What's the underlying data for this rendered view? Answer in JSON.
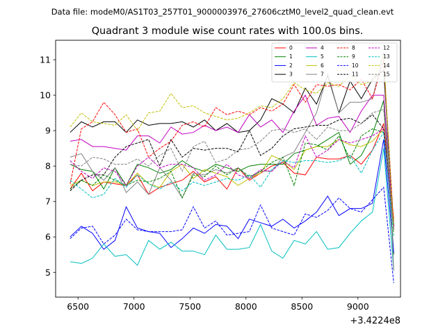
{
  "chart_data": {
    "type": "line",
    "suptitle": "Data file: modeM0/AS1T03_257T01_9000003976_27606cztM0_level2_quad_clean.evt",
    "title": "Quadrant 3 module wise count rates with 100.0s bins.",
    "xlabel": "",
    "ylabel": "",
    "x_offset_label": "+3.4224e8",
    "xlim": [
      6300,
      9380
    ],
    "ylim": [
      4.3,
      11.55
    ],
    "xticks": [
      6500,
      7000,
      7500,
      8000,
      8500,
      9000
    ],
    "yticks": [
      5,
      6,
      7,
      8,
      9,
      10,
      11
    ],
    "x": [
      6430,
      6530,
      6630,
      6730,
      6830,
      6930,
      7030,
      7130,
      7230,
      7330,
      7430,
      7530,
      7630,
      7730,
      7830,
      7930,
      8030,
      8130,
      8230,
      8330,
      8430,
      8530,
      8630,
      8730,
      8830,
      8930,
      9030,
      9130,
      9230,
      9320
    ],
    "legend_position": "top-right",
    "series": [
      {
        "name": "0",
        "color": "#ff0000",
        "dash": "solid",
        "values": [
          7.35,
          7.8,
          7.3,
          7.55,
          7.5,
          7.45,
          7.75,
          7.2,
          7.4,
          7.5,
          7.6,
          7.85,
          7.55,
          7.7,
          7.35,
          7.95,
          7.6,
          7.8,
          8.0,
          8.1,
          7.8,
          7.75,
          8.25,
          8.2,
          8.2,
          8.3,
          8.05,
          8.45,
          9.2,
          6.5
        ]
      },
      {
        "name": "1",
        "color": "#008000",
        "dash": "solid",
        "values": [
          8.05,
          7.9,
          7.85,
          7.35,
          7.95,
          7.45,
          8.05,
          7.95,
          7.8,
          7.9,
          8.15,
          7.95,
          7.85,
          8.05,
          7.95,
          7.85,
          8.0,
          8.05,
          8.05,
          8.05,
          8.35,
          8.45,
          8.55,
          8.75,
          8.95,
          8.05,
          8.3,
          8.9,
          9.85,
          5.5
        ]
      },
      {
        "name": "2",
        "color": "#0000ff",
        "dash": "solid",
        "values": [
          6.0,
          6.3,
          6.1,
          5.65,
          5.9,
          6.85,
          6.25,
          6.15,
          6.1,
          5.7,
          5.95,
          6.25,
          6.1,
          6.35,
          6.3,
          5.95,
          6.5,
          6.4,
          6.3,
          6.5,
          6.25,
          6.45,
          6.7,
          7.15,
          6.6,
          6.8,
          6.8,
          6.95,
          8.75,
          5.55
        ]
      },
      {
        "name": "3",
        "color": "#000000",
        "dash": "solid",
        "values": [
          8.95,
          9.25,
          9.1,
          9.25,
          9.25,
          8.95,
          9.3,
          9.15,
          9.2,
          9.2,
          9.25,
          9.1,
          9.3,
          9.0,
          9.2,
          8.95,
          9.0,
          9.3,
          9.9,
          9.75,
          9.5,
          10.2,
          9.75,
          10.55,
          9.5,
          10.4,
          9.9,
          10.45,
          10.7,
          6.3
        ]
      },
      {
        "name": "4",
        "color": "#c000c0",
        "dash": "solid",
        "values": [
          8.7,
          8.75,
          8.55,
          8.55,
          8.5,
          8.45,
          8.85,
          8.85,
          8.65,
          9.1,
          8.9,
          8.95,
          9.15,
          9.0,
          9.1,
          8.95,
          9.45,
          9.1,
          9.3,
          8.95,
          9.55,
          10.0,
          9.15,
          9.35,
          9.4,
          8.95,
          9.55,
          10.0,
          10.0,
          6.25
        ]
      },
      {
        "name": "5",
        "color": "#00bfbf",
        "dash": "solid",
        "values": [
          5.3,
          5.25,
          5.4,
          5.8,
          5.45,
          5.5,
          5.2,
          5.9,
          5.65,
          5.85,
          5.6,
          5.6,
          5.5,
          6.05,
          5.65,
          5.65,
          5.7,
          6.35,
          5.6,
          5.4,
          5.9,
          5.8,
          6.15,
          5.65,
          5.7,
          6.1,
          6.45,
          6.7,
          8.5,
          5.05
        ]
      },
      {
        "name": "6",
        "color": "#bfbf00",
        "dash": "solid",
        "values": [
          7.45,
          7.6,
          7.45,
          7.55,
          7.55,
          7.45,
          7.8,
          7.5,
          7.4,
          7.85,
          8.05,
          7.65,
          7.9,
          7.8,
          7.7,
          7.45,
          7.65,
          7.8,
          8.3,
          8.15,
          7.9,
          8.45,
          8.55,
          8.55,
          8.75,
          8.6,
          8.55,
          8.7,
          9.05,
          6.45
        ]
      },
      {
        "name": "7",
        "color": "#808080",
        "dash": "solid",
        "values": [
          8.25,
          8.35,
          7.85,
          7.6,
          7.95,
          7.25,
          7.55,
          7.2,
          7.95,
          7.6,
          7.1,
          7.8,
          7.75,
          7.9,
          7.8,
          7.95,
          7.65,
          7.85,
          7.85,
          8.25,
          8.4,
          8.95,
          9.5,
          10.6,
          9.5,
          9.8,
          9.8,
          9.9,
          11.2,
          5.05
        ]
      },
      {
        "name": "8",
        "color": "#ff0000",
        "dash": "dashed",
        "values": [
          7.5,
          9.05,
          9.25,
          9.8,
          9.45,
          8.95,
          9.05,
          8.25,
          8.5,
          8.7,
          9.15,
          9.25,
          9.1,
          9.65,
          9.45,
          9.55,
          9.45,
          9.65,
          9.55,
          9.75,
          10.3,
          9.8,
          10.3,
          10.25,
          10.3,
          10.15,
          10.45,
          9.9,
          11.0,
          6.3
        ]
      },
      {
        "name": "9",
        "color": "#008000",
        "dash": "dashed",
        "values": [
          7.35,
          7.6,
          7.45,
          7.75,
          7.6,
          7.45,
          7.6,
          7.55,
          7.65,
          7.85,
          7.1,
          7.75,
          7.7,
          8.0,
          7.75,
          7.95,
          7.7,
          7.85,
          8.1,
          8.25,
          7.45,
          8.65,
          8.6,
          8.45,
          8.85,
          8.2,
          8.85,
          9.05,
          8.95,
          6.35
        ]
      },
      {
        "name": "10",
        "color": "#0000ff",
        "dash": "dashed",
        "values": [
          5.95,
          6.25,
          6.3,
          5.8,
          6.05,
          6.5,
          6.2,
          6.15,
          6.15,
          6.15,
          6.2,
          6.85,
          6.25,
          6.45,
          6.05,
          6.1,
          6.15,
          6.9,
          6.25,
          6.15,
          6.05,
          6.65,
          6.55,
          6.75,
          7.1,
          6.8,
          6.7,
          7.05,
          7.4,
          4.7
        ]
      },
      {
        "name": "11",
        "color": "#000000",
        "dash": "dashed",
        "values": [
          7.3,
          7.6,
          7.75,
          7.75,
          8.25,
          8.55,
          8.65,
          8.75,
          8.0,
          8.75,
          8.25,
          8.5,
          8.45,
          8.5,
          8.5,
          8.4,
          9.0,
          8.3,
          8.5,
          8.85,
          9.05,
          9.1,
          9.15,
          9.15,
          9.3,
          9.35,
          9.2,
          9.45,
          9.05,
          6.2
        ]
      },
      {
        "name": "12",
        "color": "#c000c0",
        "dash": "dashed",
        "values": [
          8.15,
          7.85,
          7.65,
          7.95,
          7.85,
          7.45,
          8.0,
          8.25,
          7.95,
          8.05,
          8.05,
          7.95,
          7.6,
          7.75,
          8.05,
          7.75,
          7.65,
          7.9,
          7.85,
          8.15,
          7.95,
          8.85,
          8.25,
          8.45,
          8.75,
          8.65,
          8.75,
          8.85,
          9.05,
          6.25
        ]
      },
      {
        "name": "13",
        "color": "#00bfbf",
        "dash": "dashed",
        "values": [
          7.6,
          7.35,
          7.1,
          7.2,
          7.65,
          7.4,
          7.75,
          7.5,
          7.35,
          7.55,
          7.3,
          7.55,
          7.45,
          7.55,
          7.65,
          7.6,
          7.75,
          7.4,
          7.9,
          8.15,
          8.1,
          8.15,
          8.15,
          8.1,
          8.15,
          8.3,
          7.8,
          8.45,
          8.95,
          6.0
        ]
      },
      {
        "name": "14",
        "color": "#bfbf00",
        "dash": "dashed",
        "values": [
          9.1,
          9.5,
          9.25,
          9.2,
          9.15,
          9.45,
          9.0,
          9.5,
          9.55,
          10.05,
          9.65,
          9.7,
          9.5,
          9.4,
          9.3,
          9.35,
          9.5,
          9.7,
          9.65,
          9.9,
          10.35,
          10.15,
          10.05,
          10.35,
          10.25,
          10.55,
          10.3,
          10.4,
          11.15,
          6.1
        ]
      },
      {
        "name": "15",
        "color": "#808080",
        "dash": "dashed",
        "values": [
          8.05,
          8.0,
          8.25,
          8.2,
          8.05,
          8.05,
          8.2,
          8.0,
          8.3,
          8.5,
          7.85,
          8.55,
          8.7,
          8.1,
          8.2,
          8.45,
          8.5,
          8.7,
          9.0,
          9.05,
          8.95,
          9.05,
          8.75,
          9.1,
          9.0,
          9.0,
          9.2,
          9.5,
          9.6,
          6.15
        ]
      }
    ]
  }
}
